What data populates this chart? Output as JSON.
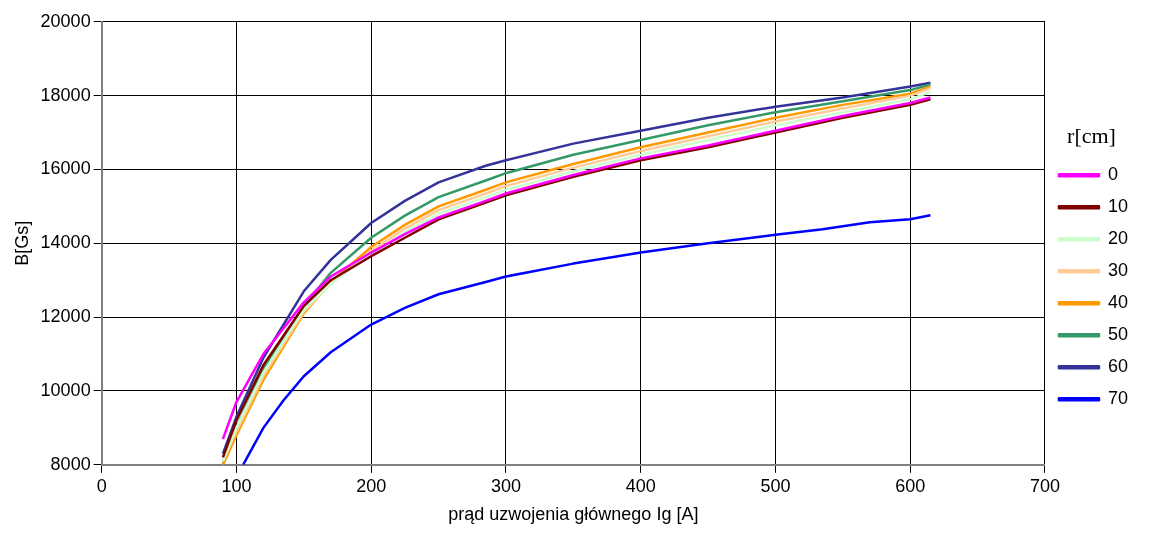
{
  "chart_data": {
    "type": "line",
    "xlabel": "prąd uzwojenia głównego Ig [A]",
    "ylabel": "B[Gs]",
    "legend_title": "r[cm]",
    "x": [
      90,
      100,
      120,
      150,
      170,
      200,
      225,
      250,
      285,
      300,
      350,
      400,
      450,
      500,
      550,
      600,
      615
    ],
    "series": [
      {
        "name": "0",
        "color": "#ff00ff",
        "values": [
          8700,
          9700,
          11000,
          12400,
          13100,
          13750,
          14250,
          14700,
          15150,
          15350,
          15850,
          16300,
          16650,
          17050,
          17450,
          17800,
          17950
        ]
      },
      {
        "name": "10",
        "color": "#800000",
        "values": [
          8200,
          9200,
          10700,
          12300,
          13000,
          13650,
          14150,
          14650,
          15100,
          15300,
          15800,
          16250,
          16600,
          17000,
          17400,
          17750,
          17900
        ]
      },
      {
        "name": "20",
        "color": "#ccffcc",
        "values": [
          8100,
          9000,
          10500,
          12200,
          12900,
          13720,
          14300,
          14800,
          15250,
          15450,
          15950,
          16400,
          16800,
          17200,
          17550,
          17900,
          18100
        ]
      },
      {
        "name": "30",
        "color": "#ffcc99",
        "values": [
          8100,
          8900,
          10400,
          12150,
          12900,
          13800,
          14400,
          14900,
          15350,
          15550,
          16050,
          16500,
          16900,
          17300,
          17650,
          18000,
          18200
        ]
      },
      {
        "name": "40",
        "color": "#ff9900",
        "values": [
          8000,
          8800,
          10300,
          12100,
          12950,
          13900,
          14500,
          15000,
          15450,
          15650,
          16150,
          16600,
          17000,
          17400,
          17750,
          18050,
          18250
        ]
      },
      {
        "name": "50",
        "color": "#339966",
        "values": [
          8000,
          9000,
          10600,
          12300,
          13200,
          14150,
          14750,
          15250,
          15700,
          15900,
          16400,
          16800,
          17200,
          17550,
          17850,
          18150,
          18300
        ]
      },
      {
        "name": "60",
        "color": "#333399",
        "values": [
          8300,
          9300,
          10900,
          12700,
          13550,
          14550,
          15150,
          15650,
          16100,
          16250,
          16700,
          17050,
          17400,
          17700,
          17950,
          18250,
          18350
        ]
      },
      {
        "name": "70",
        "color": "#0000ff",
        "x": [
          105,
          120,
          135,
          150,
          170,
          200,
          225,
          250,
          285,
          300,
          350,
          400,
          450,
          500,
          535,
          570,
          600,
          615
        ],
        "values": [
          8000,
          9000,
          9750,
          10400,
          11050,
          11800,
          12250,
          12620,
          12950,
          13100,
          13450,
          13750,
          14000,
          14230,
          14380,
          14570,
          14650,
          14760
        ]
      }
    ],
    "xlim": [
      0,
      700
    ],
    "xticks": [
      0,
      100,
      200,
      300,
      400,
      500,
      600,
      700
    ],
    "ylim": [
      8000,
      20000
    ],
    "yticks": [
      8000,
      10000,
      12000,
      14000,
      16000,
      18000,
      20000
    ],
    "grid": true,
    "legend": "right",
    "marker": "none",
    "line_style": "solid"
  }
}
